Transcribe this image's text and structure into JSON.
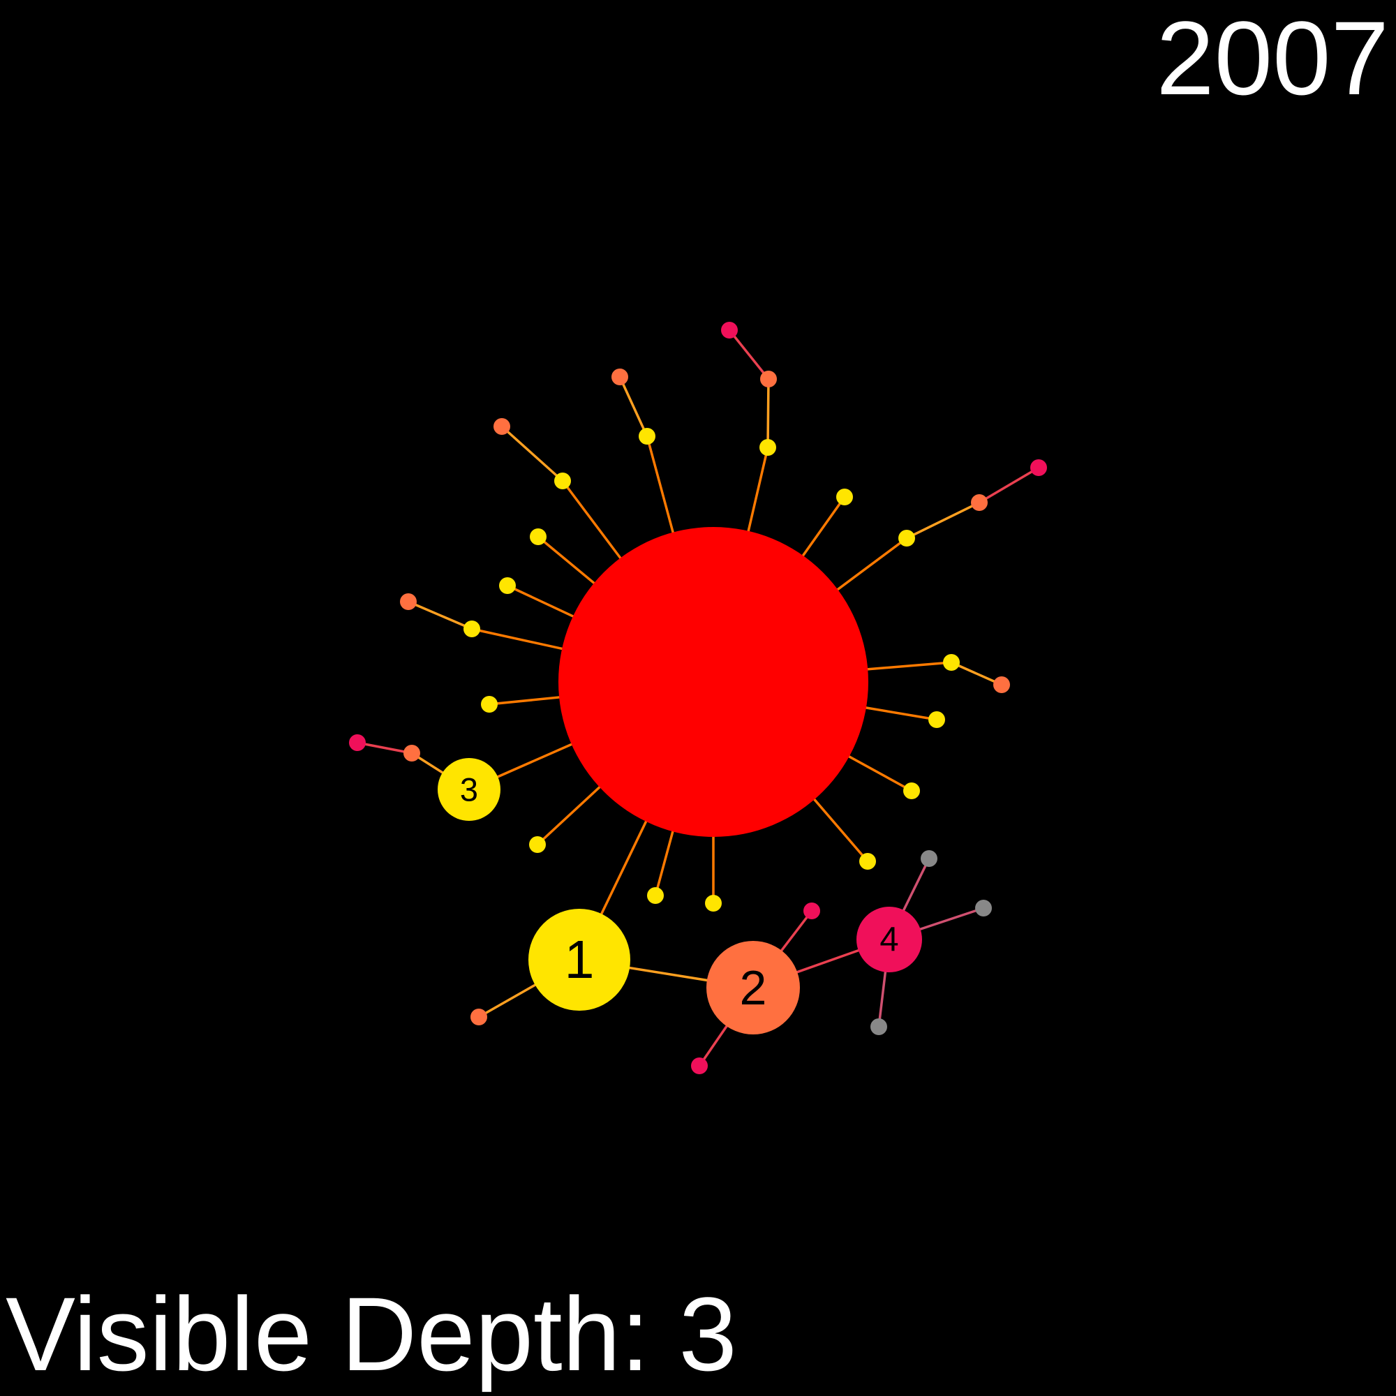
{
  "year": "2007",
  "depth_label": "Visible Depth: 3",
  "colors": {
    "background": "#000000",
    "root": "#ff0000",
    "depth1": "#ffe500",
    "depth2": "#ff7040",
    "depth3": "#f0105a",
    "depth4": "#888888",
    "text": "#ffffff"
  },
  "graph": {
    "root": {
      "name": "root",
      "color": "root"
    },
    "nodes": [
      {
        "name": "yellow-node-hub1",
        "color": "depth1",
        "label": "1",
        "parent": "root"
      },
      {
        "name": "orange-node-hub2",
        "color": "depth2",
        "label": "2",
        "parent": "yellow-node-hub1"
      },
      {
        "name": "pink-node-hub4",
        "color": "depth3",
        "label": "4",
        "parent": "orange-node-hub2"
      },
      {
        "name": "yellow-node-hub3",
        "color": "depth1",
        "label": "3",
        "parent": "root"
      }
    ],
    "legend_note": ""
  }
}
